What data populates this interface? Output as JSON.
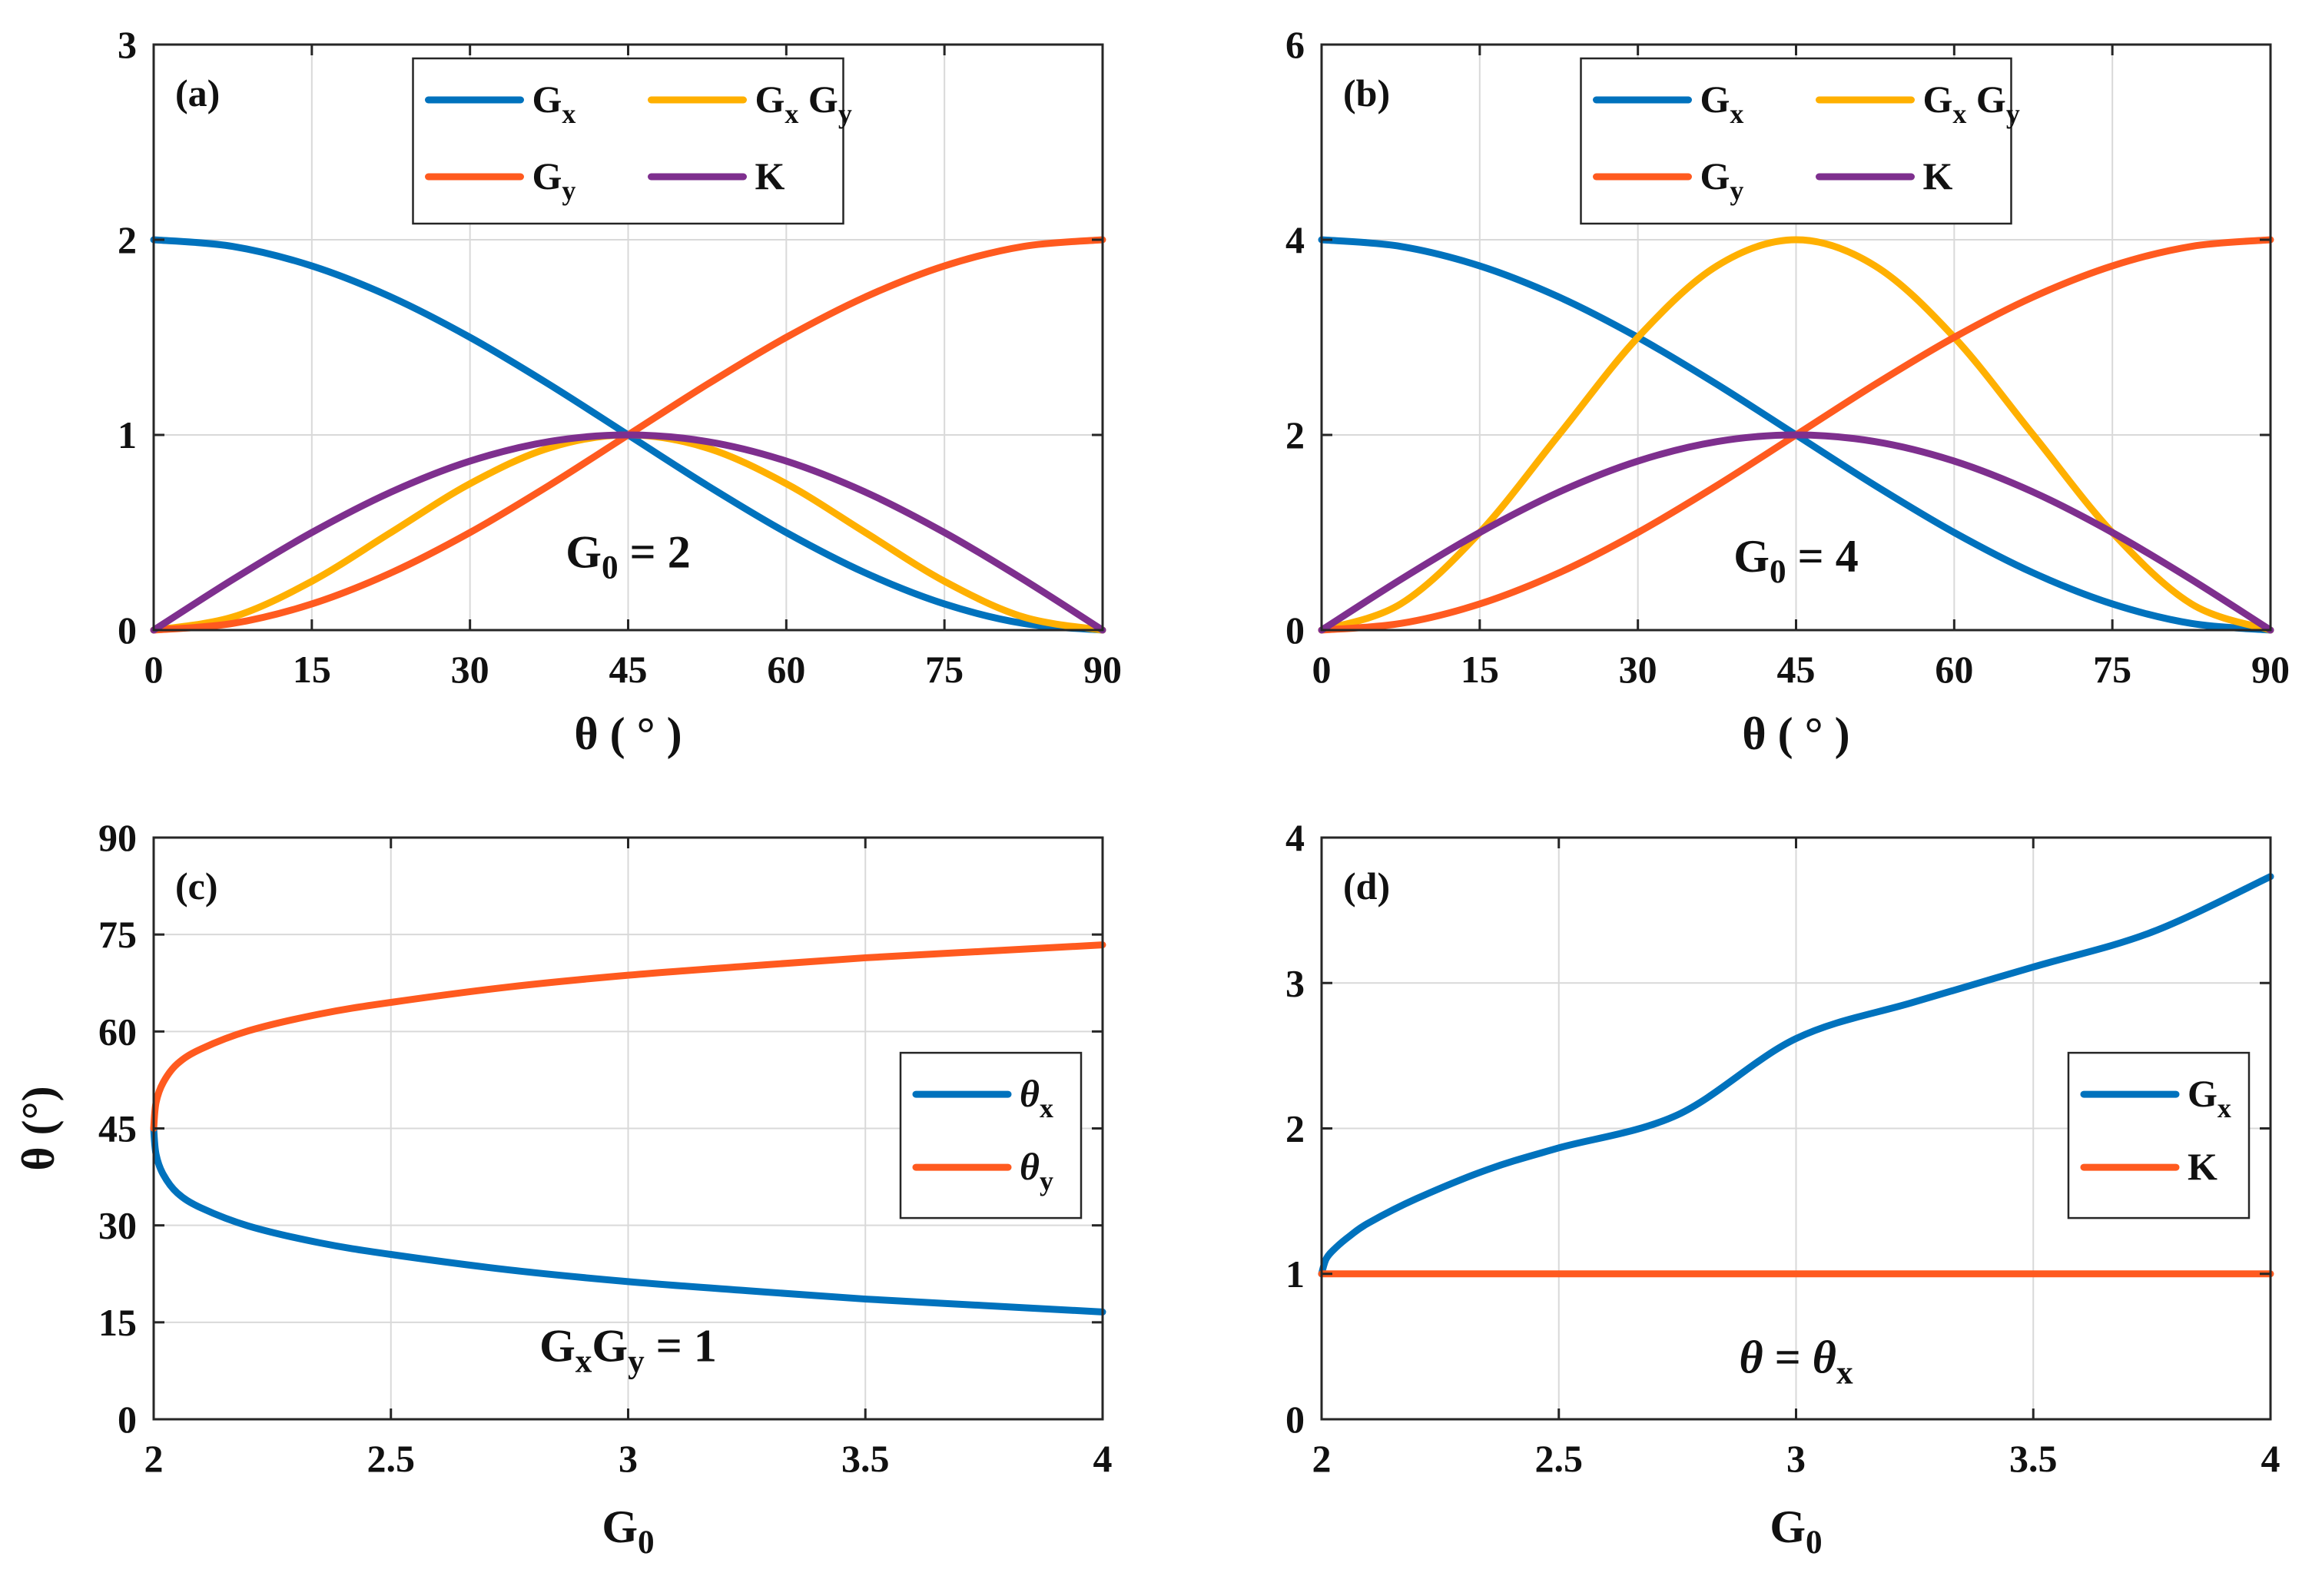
{
  "colors": {
    "Gx": "#0072BD",
    "Gy": "#FF5A1F",
    "GxGy": "#FFB000",
    "K": "#7E2F8E",
    "annotation": "#FF1A1A",
    "grid": "#d9d9d9",
    "axis": "#262626"
  },
  "chart_data": [
    {
      "id": "a",
      "type": "line",
      "panel_label": "(a)",
      "xlabel": "θ ( ° )",
      "ylabel": "",
      "xlim": [
        0,
        90
      ],
      "ylim": [
        0,
        3
      ],
      "xticks": [
        0,
        15,
        30,
        45,
        60,
        75,
        90
      ],
      "yticks": [
        0,
        1,
        2,
        3
      ],
      "grid": true,
      "legend_placement": "top-center",
      "legend_columns": 2,
      "annotation": {
        "base": "G",
        "sub": "0",
        "rest": " = 2",
        "x": 45,
        "y": 0.32
      },
      "G0": 2,
      "x": [
        0,
        7.5,
        15,
        22.5,
        30,
        37.5,
        45,
        52.5,
        60,
        67.5,
        75,
        82.5,
        90
      ],
      "series": [
        {
          "key": "Gx",
          "base": "G",
          "sub": "x",
          "values": [
            2.0,
            1.966,
            1.866,
            1.707,
            1.5,
            1.259,
            1.0,
            0.741,
            0.5,
            0.293,
            0.134,
            0.034,
            0.0
          ]
        },
        {
          "key": "GxGy",
          "base": "G",
          "sub": "x",
          "base2": " G",
          "sub2": "y",
          "values": [
            0.0,
            0.067,
            0.25,
            0.5,
            0.75,
            0.933,
            1.0,
            0.933,
            0.75,
            0.5,
            0.25,
            0.067,
            0.0
          ]
        },
        {
          "key": "Gy",
          "base": "G",
          "sub": "y",
          "values": [
            0.0,
            0.034,
            0.134,
            0.293,
            0.5,
            0.741,
            1.0,
            1.259,
            1.5,
            1.707,
            1.866,
            1.966,
            2.0
          ]
        },
        {
          "key": "K",
          "base": "K",
          "sub": "",
          "values": [
            0.0,
            0.259,
            0.5,
            0.707,
            0.866,
            0.966,
            1.0,
            0.966,
            0.866,
            0.707,
            0.5,
            0.259,
            0.0
          ]
        }
      ]
    },
    {
      "id": "b",
      "type": "line",
      "panel_label": "(b)",
      "xlabel": "θ ( ° )",
      "ylabel": "",
      "xlim": [
        0,
        90
      ],
      "ylim": [
        0,
        6
      ],
      "xticks": [
        0,
        15,
        30,
        45,
        60,
        75,
        90
      ],
      "yticks": [
        0,
        2,
        4,
        6
      ],
      "grid": true,
      "legend_placement": "top-center",
      "legend_columns": 2,
      "annotation": {
        "base": "G",
        "sub": "0",
        "rest": " = 4",
        "x": 45,
        "y": 0.6
      },
      "G0": 4,
      "x": [
        0,
        7.5,
        15,
        22.5,
        30,
        37.5,
        45,
        52.5,
        60,
        67.5,
        75,
        82.5,
        90
      ],
      "series": [
        {
          "key": "Gx",
          "base": "G",
          "sub": "x",
          "values": [
            4.0,
            3.932,
            3.732,
            3.414,
            3.0,
            2.518,
            2.0,
            1.482,
            1.0,
            0.586,
            0.268,
            0.068,
            0.0
          ]
        },
        {
          "key": "GxGy",
          "base": "G",
          "sub": "x",
          "base2": " G",
          "sub2": "y",
          "values": [
            0.0,
            0.268,
            1.0,
            2.0,
            3.0,
            3.732,
            4.0,
            3.732,
            3.0,
            2.0,
            1.0,
            0.268,
            0.0
          ]
        },
        {
          "key": "Gy",
          "base": "G",
          "sub": "y",
          "values": [
            0.0,
            0.068,
            0.268,
            0.586,
            1.0,
            1.482,
            2.0,
            2.518,
            3.0,
            3.414,
            3.732,
            3.932,
            4.0
          ]
        },
        {
          "key": "K",
          "base": "K",
          "sub": "",
          "values": [
            0.0,
            0.518,
            1.0,
            1.414,
            1.732,
            1.932,
            2.0,
            1.932,
            1.732,
            1.414,
            1.0,
            0.518,
            0.0
          ]
        }
      ]
    },
    {
      "id": "c",
      "type": "line",
      "panel_label": "(c)",
      "xlabel_base": "G",
      "xlabel_sub": "0",
      "ylabel": "θ (°)",
      "xlim": [
        2,
        4
      ],
      "ylim": [
        0,
        90
      ],
      "xticks": [
        2,
        2.5,
        3,
        3.5,
        4
      ],
      "yticks": [
        0,
        15,
        30,
        45,
        60,
        75,
        90
      ],
      "grid": true,
      "legend_placement": "right",
      "legend_columns": 1,
      "annotation": {
        "base": "G",
        "sub": "x",
        "base2": "G",
        "sub2": "y",
        "rest": " = 1",
        "x": 3.0,
        "y": 9
      },
      "x": [
        2.0,
        2.005,
        2.02,
        2.05,
        2.1,
        2.2,
        2.35,
        2.5,
        2.75,
        3.0,
        3.25,
        3.5,
        3.75,
        4.0
      ],
      "series": [
        {
          "key": "Gx",
          "base": "θ",
          "sub": "x",
          "italic": true,
          "values": [
            45.0,
            41.0,
            37.9,
            35.0,
            32.7,
            29.9,
            27.3,
            25.5,
            23.1,
            21.3,
            19.9,
            18.6,
            17.6,
            16.6
          ]
        },
        {
          "key": "Gy",
          "base": "θ",
          "sub": "y",
          "italic": true,
          "values": [
            45.0,
            49.0,
            52.1,
            55.0,
            57.3,
            60.1,
            62.7,
            64.5,
            66.9,
            68.7,
            70.1,
            71.4,
            72.4,
            73.4
          ]
        }
      ]
    },
    {
      "id": "d",
      "type": "line",
      "panel_label": "(d)",
      "xlabel_base": "G",
      "xlabel_sub": "0",
      "ylabel": "",
      "xlim": [
        2,
        4
      ],
      "ylim": [
        0,
        4
      ],
      "xticks": [
        2,
        2.5,
        3,
        3.5,
        4
      ],
      "yticks": [
        0,
        1,
        2,
        3,
        4
      ],
      "grid": true,
      "legend_placement": "right",
      "legend_columns": 1,
      "annotation": {
        "base": "θ",
        "mid": " = ",
        "base2": "θ",
        "sub2": "x",
        "italic": true,
        "x": 3.0,
        "y": 0.32
      },
      "x": [
        2.0,
        2.01,
        2.03,
        2.06,
        2.1,
        2.2,
        2.35,
        2.5,
        2.75,
        3.0,
        3.25,
        3.5,
        3.75,
        4.0
      ],
      "series": [
        {
          "key": "Gx",
          "base": "G",
          "sub": "x",
          "values": [
            1.0,
            1.105,
            1.18,
            1.262,
            1.352,
            1.517,
            1.717,
            1.866,
            2.093,
            2.618,
            2.87,
            3.11,
            3.35,
            3.732
          ]
        },
        {
          "key": "Gy",
          "base": "K",
          "sub": "",
          "values": [
            1.0,
            1.0,
            1.0,
            1.0,
            1.0,
            1.0,
            1.0,
            1.0,
            1.0,
            1.0,
            1.0,
            1.0,
            1.0,
            1.0
          ]
        }
      ]
    }
  ]
}
